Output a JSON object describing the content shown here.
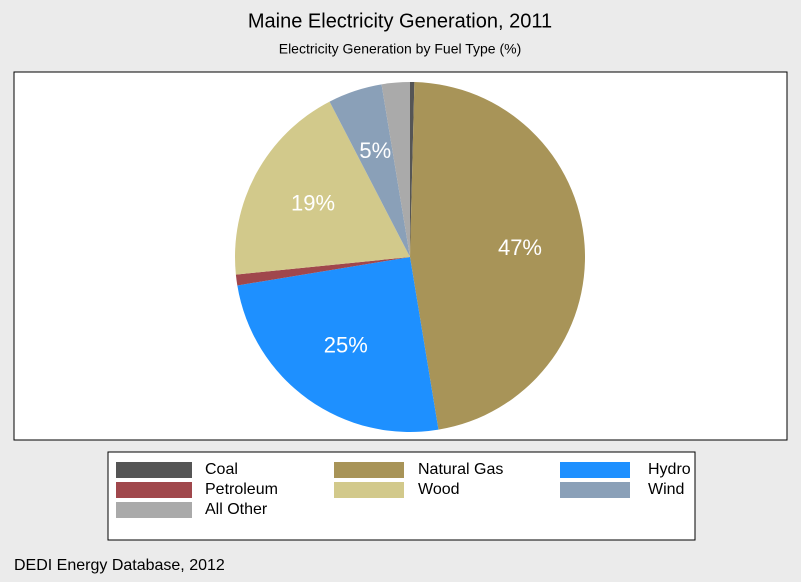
{
  "chart_data": {
    "type": "pie",
    "title": "Maine Electricity Generation, 2011",
    "subtitle": "Electricity Generation by Fuel Type (%)",
    "categories": [
      "Coal",
      "Natural Gas",
      "Hydro",
      "Petroleum",
      "Wood",
      "Wind",
      "All Other"
    ],
    "values": [
      0.4,
      47,
      25,
      1,
      19,
      5,
      2.6
    ],
    "value_labels": [
      null,
      "47%",
      "25%",
      null,
      "19%",
      "5%",
      null
    ],
    "colors": [
      "#555555",
      "#a89458",
      "#1e90ff",
      "#a0474c",
      "#d2c98b",
      "#8aa0b8",
      "#aaaaaa"
    ],
    "legend_order": [
      0,
      1,
      2,
      3,
      4,
      5,
      6
    ],
    "source": "DEDI Energy Database, 2012"
  }
}
